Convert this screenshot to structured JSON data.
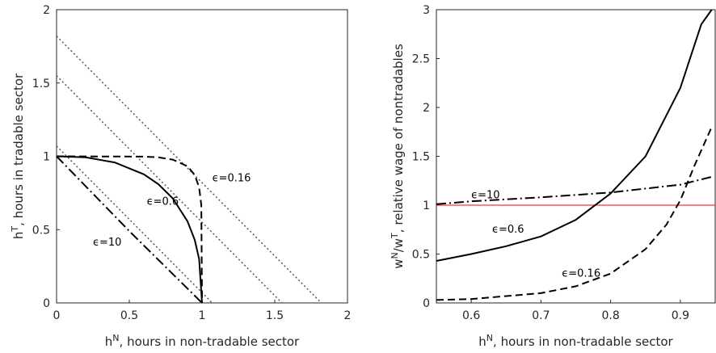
{
  "chart_data": [
    {
      "type": "line",
      "xlabel": [
        {
          "text": "h"
        },
        {
          "text": "N",
          "sup": true
        },
        {
          "text": ", hours in non-tradable sector"
        }
      ],
      "ylabel": [
        {
          "text": "h"
        },
        {
          "text": "T",
          "sup": true
        },
        {
          "text": ", hours in tradable sector"
        }
      ],
      "xlim": [
        0,
        2
      ],
      "ylim": [
        0,
        2
      ],
      "xticks": [
        0,
        0.5,
        1,
        1.5,
        2
      ],
      "yticks": [
        0,
        0.5,
        1,
        1.5,
        2
      ],
      "series": [
        {
          "style": "dotted",
          "color": "#555555",
          "x": [
            0,
            1.82
          ],
          "values": [
            1.82,
            0
          ]
        },
        {
          "style": "dotted",
          "color": "#555555",
          "x": [
            0,
            1.55
          ],
          "values": [
            1.55,
            0
          ]
        },
        {
          "style": "dotted",
          "color": "#555555",
          "x": [
            0,
            1.07
          ],
          "values": [
            1.07,
            0
          ]
        },
        {
          "style": "dashed",
          "color": "#000000",
          "x": [
            0,
            0.6,
            0.7,
            0.8,
            0.9,
            0.95,
            0.98,
            0.995,
            1
          ],
          "values": [
            1,
            0.998,
            0.993,
            0.977,
            0.932,
            0.873,
            0.788,
            0.667,
            0
          ]
        },
        {
          "style": "solid",
          "color": "#000000",
          "x": [
            0,
            0.2,
            0.4,
            0.6,
            0.7,
            0.8,
            0.9,
            0.95,
            0.98,
            1
          ],
          "values": [
            1,
            0.993,
            0.958,
            0.877,
            0.81,
            0.712,
            0.557,
            0.429,
            0.3,
            0
          ]
        },
        {
          "style": "dash-dot",
          "color": "#000000",
          "x": [
            0,
            0.5,
            1
          ],
          "values": [
            1,
            0.49,
            0
          ]
        }
      ],
      "annotations": [
        "ϵ=0.16",
        "ϵ=0.6",
        "ϵ=10"
      ]
    },
    {
      "type": "line",
      "xlabel": [
        {
          "text": "h"
        },
        {
          "text": "N",
          "sup": true
        },
        {
          "text": ", hours in non-tradable sector"
        }
      ],
      "ylabel": [
        {
          "text": "w"
        },
        {
          "text": "N",
          "sup": true
        },
        {
          "text": "/w"
        },
        {
          "text": "T",
          "sup": true
        },
        {
          "text": ", relative wage of nontradables"
        }
      ],
      "xlim": [
        0.55,
        0.95
      ],
      "ylim": [
        0,
        3
      ],
      "xticks": [
        0.6,
        0.7,
        0.8,
        0.9
      ],
      "yticks": [
        0,
        0.5,
        1,
        1.5,
        2,
        2.5,
        3
      ],
      "reference_line": {
        "value": 1,
        "color": "#ff0000"
      },
      "series": [
        {
          "style": "solid",
          "color": "#000000",
          "x": [
            0.55,
            0.6,
            0.65,
            0.7,
            0.75,
            0.8,
            0.85,
            0.9,
            0.93,
            0.945
          ],
          "values": [
            0.43,
            0.5,
            0.58,
            0.68,
            0.85,
            1.12,
            1.5,
            2.2,
            2.85,
            3
          ]
        },
        {
          "style": "dashed",
          "color": "#000000",
          "x": [
            0.55,
            0.6,
            0.7,
            0.75,
            0.8,
            0.85,
            0.88,
            0.9,
            0.92,
            0.945
          ],
          "values": [
            0.03,
            0.04,
            0.1,
            0.17,
            0.3,
            0.55,
            0.8,
            1.05,
            1.4,
            1.8
          ]
        },
        {
          "style": "dash-dot",
          "color": "#000000",
          "x": [
            0.55,
            0.6,
            0.7,
            0.8,
            0.9,
            0.945
          ],
          "values": [
            1.01,
            1.04,
            1.08,
            1.13,
            1.21,
            1.29
          ]
        }
      ],
      "annotations": [
        "ϵ=10",
        "ϵ=0.6",
        "ϵ=0.16"
      ]
    }
  ]
}
